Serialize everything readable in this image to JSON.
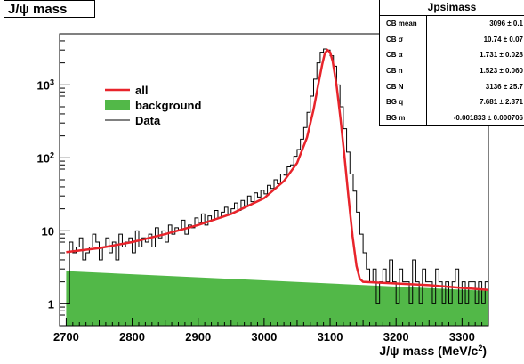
{
  "title": "J/ψ mass",
  "stats": {
    "header": "Jpsimass",
    "rows": [
      {
        "label": "CB mean",
        "value": "3096 ± 0.1"
      },
      {
        "label": "CB σ",
        "value": "10.74 ± 0.07"
      },
      {
        "label": "CB α",
        "value": "1.731 ± 0.028"
      },
      {
        "label": "CB n",
        "value": "1.523 ± 0.060"
      },
      {
        "label": "CB N",
        "value": "3136 ± 25.7"
      },
      {
        "label": "BG q",
        "value": "7.681 ± 2.371"
      },
      {
        "label": "BG m",
        "value": "-0.001833 ± 0.000706"
      }
    ]
  },
  "chart_data": {
    "type": "line",
    "xlabel_main": "J/ψ mass (MeV/c",
    "xlabel_sup": "2",
    "xlabel_close": ")",
    "xlim": [
      2690,
      3340
    ],
    "ylim": [
      0.5,
      5000
    ],
    "yscale": "log",
    "x_ticks": [
      {
        "value": 2700,
        "label": "2700"
      },
      {
        "value": 2800,
        "label": "2800"
      },
      {
        "value": 2900,
        "label": "2900"
      },
      {
        "value": 3000,
        "label": "3000"
      },
      {
        "value": 3100,
        "label": "3100"
      },
      {
        "value": 3200,
        "label": "3200"
      },
      {
        "value": 3300,
        "label": "3300"
      }
    ],
    "y_ticks": [
      {
        "value": 1,
        "label": "1"
      },
      {
        "value": 10,
        "label": "10"
      },
      {
        "value": 100,
        "label": "10",
        "sup": "2"
      },
      {
        "value": 1000,
        "label": "10",
        "sup": "3"
      }
    ],
    "legend": {
      "position": "upper-left",
      "entries": [
        {
          "label": "all",
          "kind": "line",
          "color": "#e8242b"
        },
        {
          "label": "background",
          "kind": "fill",
          "color": "#52b848"
        },
        {
          "label": "Data",
          "kind": "line",
          "color": "#000000"
        }
      ]
    },
    "background": {
      "x": [
        2700,
        3340
      ],
      "y": [
        2.8,
        1.5
      ]
    },
    "fit_curve": {
      "x": [
        2700,
        2750,
        2800,
        2850,
        2900,
        2950,
        3000,
        3030,
        3050,
        3065,
        3075,
        3082,
        3088,
        3092,
        3096,
        3100,
        3104,
        3110,
        3116,
        3122,
        3128,
        3134,
        3140,
        3145,
        3150,
        3200,
        3250,
        3300,
        3340
      ],
      "y": [
        5.1,
        5.8,
        7,
        9,
        12,
        17,
        28,
        48,
        85,
        190,
        460,
        1000,
        1900,
        2700,
        3000,
        2800,
        2100,
        950,
        330,
        100,
        28,
        8.5,
        3.3,
        2.2,
        2.0,
        1.9,
        1.8,
        1.65,
        1.55
      ]
    },
    "data_points": {
      "x": [
        2702.5,
        2707.5,
        2712.5,
        2717.5,
        2722.5,
        2727.5,
        2732.5,
        2737.5,
        2742.5,
        2747.5,
        2752.5,
        2757.5,
        2762.5,
        2767.5,
        2772.5,
        2777.5,
        2782.5,
        2787.5,
        2792.5,
        2797.5,
        2802.5,
        2807.5,
        2812.5,
        2817.5,
        2822.5,
        2827.5,
        2832.5,
        2837.5,
        2842.5,
        2847.5,
        2852.5,
        2857.5,
        2862.5,
        2867.5,
        2872.5,
        2877.5,
        2882.5,
        2887.5,
        2892.5,
        2897.5,
        2902.5,
        2907.5,
        2912.5,
        2917.5,
        2922.5,
        2927.5,
        2932.5,
        2937.5,
        2942.5,
        2947.5,
        2952.5,
        2957.5,
        2962.5,
        2967.5,
        2972.5,
        2977.5,
        2982.5,
        2987.5,
        2992.5,
        2997.5,
        3002.5,
        3007.5,
        3012.5,
        3017.5,
        3022.5,
        3027.5,
        3032.5,
        3037.5,
        3042.5,
        3047.5,
        3052.5,
        3057.5,
        3062.5,
        3067.5,
        3072.5,
        3077.5,
        3082.5,
        3087.5,
        3092.5,
        3097.5,
        3102.5,
        3107.5,
        3112.5,
        3117.5,
        3122.5,
        3127.5,
        3132.5,
        3137.5,
        3142.5,
        3147.5,
        3152.5,
        3157.5,
        3162.5,
        3167.5,
        3172.5,
        3177.5,
        3182.5,
        3187.5,
        3192.5,
        3197.5,
        3202.5,
        3207.5,
        3212.5,
        3217.5,
        3222.5,
        3227.5,
        3232.5,
        3237.5,
        3242.5,
        3247.5,
        3252.5,
        3257.5,
        3262.5,
        3267.5,
        3272.5,
        3277.5,
        3282.5,
        3287.5,
        3292.5,
        3297.5,
        3302.5,
        3307.5,
        3312.5,
        3317.5,
        3322.5,
        3327.5,
        3332.5,
        3337.5
      ],
      "y": [
        1,
        7,
        5,
        6,
        8,
        4,
        5,
        6,
        9,
        7,
        4,
        6,
        8,
        5,
        7,
        4,
        9,
        6,
        7,
        8,
        5,
        10,
        6,
        8,
        7,
        9,
        6,
        11,
        8,
        10,
        7,
        12,
        9,
        11,
        10,
        14,
        9,
        12,
        11,
        15,
        13,
        17,
        12,
        16,
        14,
        19,
        15,
        18,
        21,
        17,
        20,
        24,
        19,
        26,
        22,
        30,
        25,
        33,
        29,
        36,
        32,
        42,
        38,
        50,
        44,
        60,
        58,
        75,
        80,
        105,
        130,
        180,
        260,
        420,
        700,
        1200,
        2000,
        2800,
        3100,
        3000,
        2500,
        1800,
        1000,
        500,
        250,
        120,
        60,
        35,
        18,
        9,
        5,
        3,
        2,
        3,
        1,
        2,
        3,
        2,
        4,
        2,
        1,
        3,
        2,
        2,
        1,
        4,
        2,
        1,
        3,
        2,
        2,
        1,
        3,
        2,
        1,
        2,
        1,
        2,
        3,
        1,
        2,
        1,
        2,
        2,
        1,
        2,
        1,
        2
      ]
    }
  }
}
